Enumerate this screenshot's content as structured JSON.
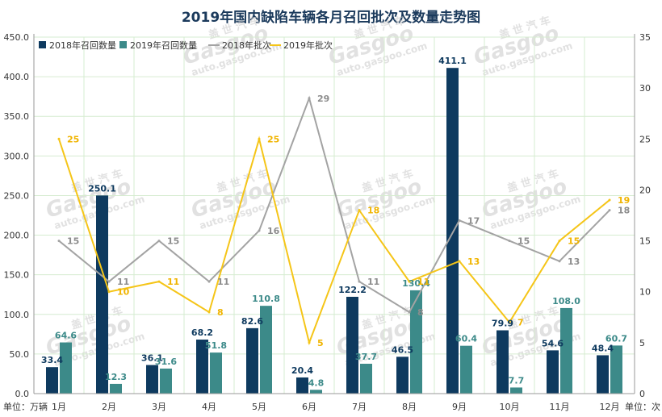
{
  "colors": {
    "bar2018": "#0e3a5f",
    "bar2019": "#3c8a89",
    "line2018": "#a3a3a3",
    "line2019": "#f5c518",
    "title": "#1b3a5c",
    "grid": "#d6ecd0"
  },
  "watermark": {
    "cn": "盖 世 汽 车",
    "logo": "Gasgoo",
    "url": "auto.gasgoo.com"
  },
  "chart_data": {
    "type": "bar",
    "title": "2019年国内缺陷车辆各月召回批次及数量走势图",
    "categories": [
      "1月",
      "2月",
      "3月",
      "4月",
      "5月",
      "6月",
      "7月",
      "8月",
      "9月",
      "10月",
      "11月",
      "12月"
    ],
    "left_unit": "单位：万辆",
    "right_unit": "单位：次",
    "ylim_left": [
      0,
      450
    ],
    "ylim_right": [
      0,
      35
    ],
    "yticks_left": [
      "0.0",
      "50.0",
      "100.0",
      "150.0",
      "200.0",
      "250.0",
      "300.0",
      "350.0",
      "400.0",
      "450.0"
    ],
    "yticks_right": [
      "0",
      "5",
      "10",
      "15",
      "20",
      "25",
      "30",
      "35"
    ],
    "grid": true,
    "legend_position": "top-left",
    "series": [
      {
        "name": "2018年召回数量",
        "kind": "bar",
        "axis": "left",
        "values": [
          33.4,
          250.1,
          36.1,
          68.2,
          82.6,
          20.4,
          122.2,
          46.5,
          411.1,
          79.9,
          54.6,
          48.4
        ],
        "labels": [
          "33.4",
          "250.1",
          "36.1",
          "68.2",
          "82.6",
          "20.4",
          "122.2",
          "46.5",
          "411.1",
          "79.9",
          "54.6",
          "48.4"
        ]
      },
      {
        "name": "2019年召回数量",
        "kind": "bar",
        "axis": "left",
        "values": [
          64.6,
          12.3,
          31.6,
          51.8,
          110.8,
          4.8,
          37.7,
          130.4,
          60.4,
          7.7,
          108.0,
          60.7
        ],
        "labels": [
          "64.6",
          "12.3",
          "31.6",
          "51.8",
          "110.8",
          "4.8",
          "37.7",
          "130.4",
          "60.4",
          "7.7",
          "108.0",
          "60.7"
        ]
      },
      {
        "name": "2018年批次",
        "kind": "line",
        "axis": "right",
        "values": [
          15,
          11,
          15,
          11,
          16,
          29,
          11,
          8,
          17,
          15,
          13,
          18
        ],
        "labels": [
          "15",
          "11",
          "15",
          "11",
          "16",
          "29",
          "11",
          "8",
          "17",
          "15",
          "13",
          "18"
        ]
      },
      {
        "name": "2019年批次",
        "kind": "line",
        "axis": "right",
        "values": [
          25,
          10,
          11,
          8,
          25,
          5,
          18,
          11,
          13,
          7,
          15,
          19
        ],
        "labels": [
          "25",
          "10",
          "11",
          "8",
          "25",
          "5",
          "18",
          "11",
          "13",
          "7",
          "15",
          "19"
        ]
      }
    ]
  }
}
